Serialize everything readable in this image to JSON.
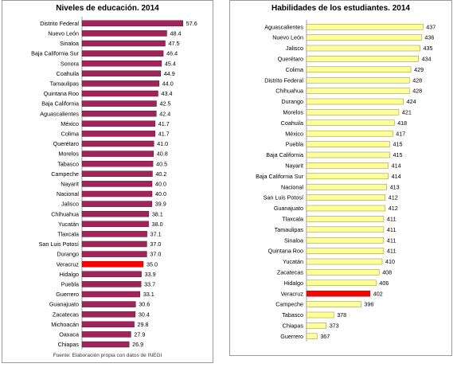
{
  "chart_data": [
    {
      "type": "bar",
      "orientation": "horizontal",
      "title": "Niveles de educación. 2014",
      "footer": "Fuente: Elaboración propia con datos de INEGI",
      "bar_color": "#a0245a",
      "highlight_color": "#ff0000",
      "highlight_category": "Veracruz",
      "xlim": [
        0,
        60
      ],
      "grid": false,
      "legend": "none",
      "categories": [
        "Distrito Federal",
        "Nuevo León",
        "Sinaloa",
        "Baja California Sur",
        "Sonora",
        "Coahuila",
        "Tamaulipas",
        "Quintana Roo",
        "Baja California",
        "Aguascalientes",
        "México",
        "Colima",
        "Querétaro",
        "Morelos",
        "Tabasco",
        "Campeche",
        "Nayarit",
        "Nacional",
        "Jalisco",
        "Chihuahua",
        "Yucatán",
        "Tlaxcala",
        "San Luis Potosí",
        "Durango",
        "Veracruz",
        "Hidalgo",
        "Puebla",
        "Guerrero",
        "Guanajuato",
        "Zacatecas",
        "Michoacán",
        "Oaxaca",
        "Chiapas"
      ],
      "values": [
        57.6,
        48.4,
        47.5,
        46.4,
        45.4,
        44.9,
        44.0,
        43.4,
        42.5,
        42.4,
        41.7,
        41.7,
        41.0,
        40.8,
        40.5,
        40.2,
        40.0,
        40.0,
        39.9,
        38.1,
        38.0,
        37.1,
        37.0,
        37.0,
        35.0,
        33.9,
        33.7,
        33.1,
        30.6,
        30.4,
        29.8,
        27.9,
        26.9
      ],
      "value_labels": [
        "57.6",
        "48.4",
        "47.5",
        "46.4",
        "45.4",
        "44.9",
        "44.0",
        "43.4",
        "42.5",
        "42.4",
        "41.7",
        "41.7",
        "41.0",
        "40.8",
        "40.5",
        "40.2",
        "40.0",
        "40.0",
        "39.9",
        "38.1",
        "38.0",
        "37.1",
        "37.0",
        "37.0",
        "35.0",
        "33.9",
        "33.7",
        "33.1",
        "30.6",
        "30.4",
        "29.8",
        "27.9",
        "26.9"
      ]
    },
    {
      "type": "bar",
      "orientation": "horizontal",
      "title": "Habilidades de los estudiantes. 2014",
      "bar_color": "#ffff99",
      "highlight_color": "#ff0000",
      "highlight_category": "Veracruz",
      "xlim": [
        360,
        440
      ],
      "grid": false,
      "legend": "none",
      "categories": [
        "Aguascalientes",
        "Nuevo León",
        "Jalisco",
        "Querétaro",
        "Colima",
        "Distrito Federal",
        "Chihuahua",
        "Durango",
        "Morelos",
        "Coahuila",
        "México",
        "Puebla",
        "Baja California",
        "Nayarit",
        "Baja California Sur",
        "Nacional",
        "San Luis Potosí",
        "Guanajuato",
        "Tlaxcala",
        "Tamaulipas",
        "Sinaloa",
        "Quintana Roo",
        "Yucatán",
        "Zacatecas",
        "Hidalgo",
        "Veracruz",
        "Campeche",
        "Tabasco",
        "Chiapas",
        "Guerrero"
      ],
      "values": [
        437,
        436,
        435,
        434,
        429,
        428,
        428,
        424,
        421,
        418,
        417,
        415,
        415,
        414,
        414,
        413,
        412,
        412,
        411,
        411,
        411,
        411,
        410,
        408,
        406,
        402,
        396,
        378,
        373,
        367
      ],
      "value_labels": [
        "437",
        "436",
        "435",
        "434",
        "429",
        "428",
        "428",
        "424",
        "421",
        "418",
        "417",
        "415",
        "415",
        "414",
        "414",
        "413",
        "412",
        "412",
        "411",
        "411",
        "411",
        "411",
        "410",
        "408",
        "406",
        "402",
        "396",
        "378",
        "373",
        "367"
      ]
    }
  ]
}
